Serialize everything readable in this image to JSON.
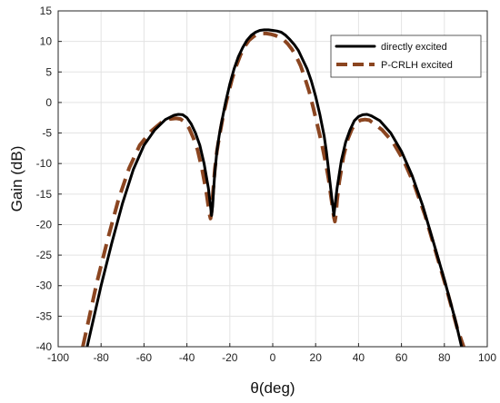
{
  "chart_data": {
    "type": "line",
    "title": "",
    "xlabel": "θ(deg)",
    "ylabel": "Gain (dB)",
    "xlim": [
      -100,
      100
    ],
    "ylim": [
      -40,
      15
    ],
    "xticks": [
      -100,
      -80,
      -60,
      -40,
      -20,
      0,
      20,
      40,
      60,
      80,
      100
    ],
    "yticks": [
      15,
      10,
      5,
      0,
      -5,
      -10,
      -15,
      -20,
      -25,
      -30,
      -35,
      -40
    ],
    "xtick_labels": [
      "-100",
      "-80",
      "-60",
      "-40",
      "-20",
      "0",
      "20",
      "40",
      "60",
      "80",
      "100"
    ],
    "ytick_labels": [
      "15",
      "10",
      "5",
      "0",
      "-5",
      "-10",
      "-15",
      "-20",
      "-25",
      "-30",
      "-35",
      "-40"
    ],
    "grid": true,
    "legend": "top-right",
    "series": [
      {
        "name": "directly excited",
        "color": "#000000",
        "style": "solid",
        "x": [
          -86.5,
          -80,
          -75,
          -70,
          -65,
          -60,
          -55,
          -50,
          -46,
          -44,
          -42,
          -40,
          -38,
          -36,
          -34,
          -32,
          -30,
          -29,
          -28.5,
          -28,
          -27.5,
          -27,
          -26,
          -25,
          -24,
          -22,
          -20,
          -18,
          -16,
          -14,
          -12,
          -10,
          -8,
          -6,
          -4,
          -2,
          0,
          2,
          4,
          6,
          8,
          10,
          12,
          14,
          16,
          18,
          20,
          22,
          24,
          25,
          26,
          27,
          28,
          28.5,
          29,
          30,
          32,
          34,
          36,
          38,
          40,
          42,
          44,
          46,
          50,
          55,
          60,
          65,
          70,
          75,
          80,
          85,
          88
        ],
        "y": [
          -40,
          -30,
          -23,
          -16.5,
          -11,
          -7,
          -4.5,
          -2.8,
          -2.1,
          -1.95,
          -2.0,
          -2.5,
          -3.5,
          -5.0,
          -7.0,
          -10.0,
          -14.0,
          -17.0,
          -18.5,
          -17.0,
          -14.0,
          -11.5,
          -8.0,
          -5.5,
          -3.5,
          0.0,
          3.0,
          5.5,
          7.5,
          9.0,
          10.2,
          11.0,
          11.5,
          11.8,
          11.9,
          11.9,
          11.8,
          11.7,
          11.5,
          11.0,
          10.3,
          9.5,
          8.5,
          7.0,
          5.5,
          3.5,
          1.0,
          -2.0,
          -5.5,
          -8.0,
          -11.0,
          -14.0,
          -17.0,
          -18.5,
          -17.0,
          -14.0,
          -9.5,
          -6.5,
          -4.5,
          -3.0,
          -2.3,
          -2.0,
          -1.95,
          -2.2,
          -3.0,
          -5.0,
          -8.0,
          -12.0,
          -17.0,
          -23.0,
          -29.0,
          -35.5,
          -40
        ]
      },
      {
        "name": "P-CRLH excited",
        "color": "#8b4520",
        "style": "dashed",
        "x": [
          -88.5,
          -82,
          -77,
          -72,
          -67,
          -62,
          -57,
          -52,
          -48,
          -45,
          -43,
          -41,
          -39,
          -37,
          -35,
          -33,
          -31,
          -30,
          -29.5,
          -29,
          -28.5,
          -28,
          -27,
          -26,
          -25,
          -23,
          -21,
          -19,
          -17,
          -15,
          -13,
          -11,
          -9,
          -7,
          -5,
          -3,
          -1,
          1,
          3,
          5,
          7,
          9,
          11,
          13,
          15,
          17,
          19,
          21,
          23,
          25,
          26,
          27,
          28,
          28.5,
          29,
          29.5,
          30,
          31,
          33,
          35,
          37,
          39,
          41,
          43,
          45,
          47,
          51,
          56,
          61,
          66,
          71,
          76,
          81,
          86,
          89
        ],
        "y": [
          -40,
          -29.5,
          -22.5,
          -16,
          -10.8,
          -7,
          -4.8,
          -3.3,
          -2.7,
          -2.6,
          -2.7,
          -3.2,
          -4.2,
          -5.8,
          -7.8,
          -10.8,
          -14.5,
          -17.0,
          -18.3,
          -19.0,
          -18.0,
          -15.5,
          -11.0,
          -8.0,
          -5.8,
          -2.0,
          1.0,
          3.8,
          6.0,
          7.8,
          9.2,
          10.2,
          10.8,
          11.2,
          11.3,
          11.3,
          11.2,
          11.0,
          10.7,
          10.3,
          9.6,
          8.7,
          7.5,
          6.0,
          4.0,
          1.8,
          -1.0,
          -4.0,
          -7.0,
          -10.5,
          -12.5,
          -15.0,
          -17.5,
          -18.8,
          -19.5,
          -18.3,
          -16.0,
          -13.0,
          -8.8,
          -6.0,
          -4.3,
          -3.3,
          -2.9,
          -2.8,
          -2.9,
          -3.4,
          -4.5,
          -6.5,
          -9.5,
          -13.5,
          -18.5,
          -24.5,
          -30.5,
          -37.0,
          -40
        ]
      }
    ]
  }
}
